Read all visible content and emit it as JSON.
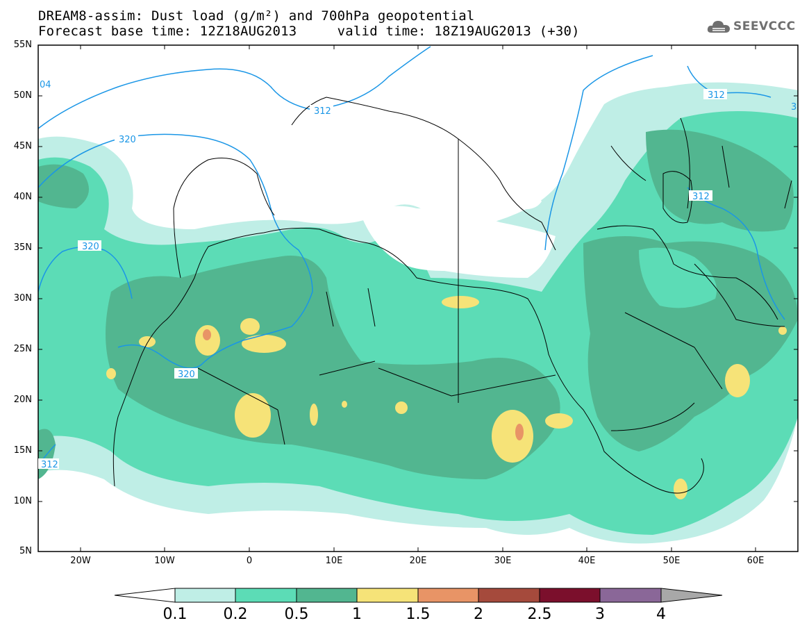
{
  "header": {
    "line1": "DREAM8-assim: Dust load (g/m²) and 700hPa geopotential",
    "line2": "Forecast base time: 12Z18AUG2013     valid time: 18Z19AUG2013 (+30)"
  },
  "logo": {
    "text": "SEEVCCC",
    "icon": "cloud-icon"
  },
  "axes": {
    "lat_labels": [
      "55N",
      "50N",
      "45N",
      "40N",
      "35N",
      "30N",
      "25N",
      "20N",
      "15N",
      "10N",
      "5N"
    ],
    "lon_labels": [
      "20W",
      "10W",
      "0",
      "10E",
      "20E",
      "30E",
      "40E",
      "50E",
      "60E"
    ],
    "lon_range": [
      -25,
      65
    ],
    "lat_range": [
      5,
      55
    ]
  },
  "contours": {
    "labels": [
      "04",
      "312",
      "320",
      "320",
      "320",
      "312",
      "312",
      "312",
      "3"
    ],
    "color": "#1a96e6"
  },
  "colorbar": {
    "labels": [
      "0.1",
      "0.2",
      "0.5",
      "1",
      "1.5",
      "2",
      "2.5",
      "3",
      "4"
    ],
    "colors": [
      "#ffffff",
      "#bfeee6",
      "#5cdcb6",
      "#52b690",
      "#f6e378",
      "#e89466",
      "#a54a3c",
      "#7b0f2c",
      "#8a6798",
      "#a8a8a8"
    ]
  },
  "dust_colors": {
    "c1": "#bfeee6",
    "c2": "#5cdcb6",
    "c3": "#52b690",
    "c4": "#f6e378",
    "c5": "#e89466"
  }
}
